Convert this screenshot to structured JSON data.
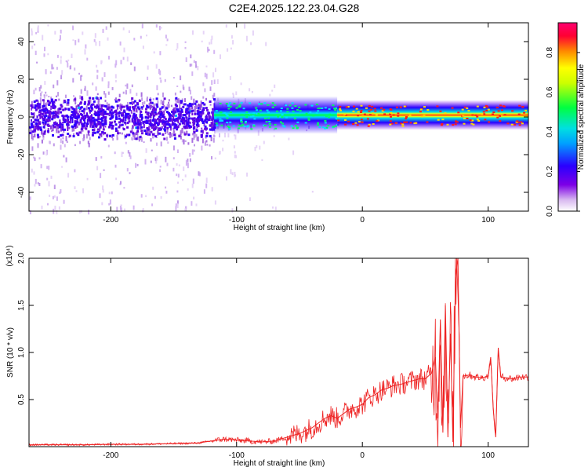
{
  "page_title": "C2E4.2025.122.23.04.G28",
  "chart_data": [
    {
      "type": "heatmap",
      "title": "C2E4.2025.122.23.04.G28",
      "xlabel": "Height of straight line (km)",
      "ylabel": "Frequency (Hz)",
      "xlim": [
        -265,
        132
      ],
      "ylim": [
        -50,
        50
      ],
      "xticks": [
        -200,
        -100,
        0,
        100
      ],
      "yticks": [
        -40,
        -20,
        0,
        20,
        40
      ],
      "colorbar": {
        "label": "Normalized spectral amplitude",
        "range": [
          0.0,
          0.95
        ],
        "ticks": [
          0.0,
          0.2,
          0.4,
          0.6,
          0.8
        ],
        "colormap": [
          "#ffffff",
          "#d8b8f0",
          "#7d00e6",
          "#2a00ff",
          "#00d8ff",
          "#00ff40",
          "#ffff00",
          "#ff8800",
          "#ff0033",
          "#ff0070"
        ]
      },
      "band_segments": [
        {
          "x_from": -265,
          "x_to": -118,
          "center_freq": 0,
          "amplitude": 0.15,
          "note": "broad noisy band"
        },
        {
          "x_from": -118,
          "x_to": -20,
          "center_freq": 1,
          "amplitude": 0.45,
          "note": "narrow green band"
        },
        {
          "x_from": -20,
          "x_to": 132,
          "center_freq": 1,
          "amplitude": 0.85,
          "note": "narrow red band"
        }
      ]
    },
    {
      "type": "line",
      "xlabel": "Height of straight line (km)",
      "ylabel": "SNR (10 * v/v)",
      "y_multiplier": "(x10⁴)",
      "xlim": [
        -265,
        132
      ],
      "ylim": [
        0,
        2.0
      ],
      "xticks": [
        -200,
        -100,
        0,
        100
      ],
      "yticks": [
        0.5,
        1.0,
        1.5,
        2.0
      ],
      "series": [
        {
          "color": "#ee2222",
          "x": [
            -265,
            -240,
            -220,
            -200,
            -180,
            -160,
            -140,
            -130,
            -120,
            -110,
            -100,
            -90,
            -80,
            -70,
            -60,
            -50,
            -40,
            -35,
            -30,
            -25,
            -20,
            -15,
            -10,
            -5,
            0,
            5,
            10,
            15,
            20,
            25,
            30,
            35,
            40,
            45,
            50,
            55,
            58,
            60,
            62,
            64,
            66,
            68,
            70,
            72,
            74,
            76,
            78,
            80,
            85,
            90,
            95,
            100,
            102,
            104,
            106,
            108,
            110,
            115,
            120,
            125,
            132
          ],
          "y": [
            0.02,
            0.02,
            0.02,
            0.025,
            0.025,
            0.03,
            0.035,
            0.04,
            0.06,
            0.08,
            0.07,
            0.06,
            0.05,
            0.06,
            0.1,
            0.14,
            0.2,
            0.25,
            0.3,
            0.33,
            0.3,
            0.35,
            0.4,
            0.42,
            0.45,
            0.52,
            0.55,
            0.6,
            0.62,
            0.65,
            0.66,
            0.68,
            0.7,
            0.72,
            0.72,
            0.78,
            0.95,
            0.3,
            1.35,
            0.15,
            1.5,
            0.1,
            1.2,
            0.05,
            1.8,
            2.0,
            0.2,
            0.75,
            0.76,
            0.74,
            0.73,
            0.75,
            0.95,
            0.4,
            0.1,
            1.05,
            0.74,
            0.73,
            0.72,
            0.74,
            0.74
          ]
        }
      ]
    }
  ]
}
